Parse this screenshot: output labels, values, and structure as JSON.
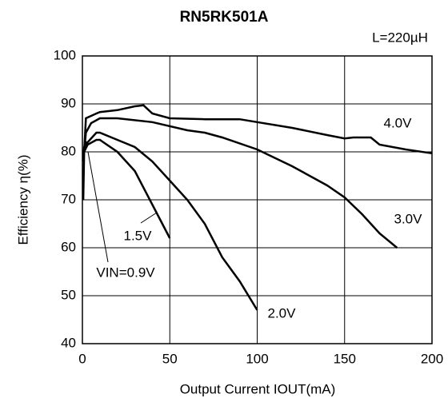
{
  "chart_data": {
    "type": "line",
    "title": "RN5RK501A",
    "annotation": "L=220µH",
    "xlabel": "Output Current IOUT(mA)",
    "ylabel": "Efficiency η(%)",
    "xlim": [
      0,
      200
    ],
    "xticks": [
      0,
      50,
      100,
      150,
      200
    ],
    "ylim": [
      40,
      100
    ],
    "yticks": [
      40,
      50,
      60,
      70,
      80,
      90,
      100
    ],
    "grid": true,
    "series": [
      {
        "name": "4.0V",
        "color": "#000000",
        "x": [
          0.5,
          1,
          2,
          5,
          8,
          10,
          20,
          30,
          35,
          40,
          50,
          70,
          90,
          100,
          120,
          140,
          150,
          155,
          165,
          170,
          185,
          200
        ],
        "values": [
          70,
          80,
          87,
          87.5,
          88,
          88.3,
          88.7,
          89.5,
          89.7,
          88,
          87,
          86.8,
          86.8,
          86.2,
          85,
          83.5,
          82.8,
          83,
          83,
          81.5,
          80.5,
          79.7
        ]
      },
      {
        "name": "3.0V",
        "color": "#000000",
        "x": [
          1,
          2,
          5,
          10,
          20,
          40,
          60,
          70,
          80,
          100,
          120,
          140,
          150,
          160,
          170,
          180
        ],
        "values": [
          80,
          84,
          86,
          87,
          87,
          86.2,
          84.5,
          84,
          83,
          80.5,
          77,
          73,
          70.5,
          67,
          63,
          60
        ]
      },
      {
        "name": "2.0V",
        "color": "#000000",
        "x": [
          1,
          3,
          8,
          10,
          20,
          30,
          40,
          50,
          60,
          70,
          80,
          90,
          100
        ],
        "values": [
          80,
          82,
          84,
          84,
          82.5,
          81,
          78,
          74,
          70,
          65,
          58,
          53,
          47
        ]
      },
      {
        "name": "1.5V",
        "color": "#000000",
        "x": [
          1,
          3,
          8,
          10,
          20,
          30,
          40,
          50
        ],
        "values": [
          80,
          81.5,
          82.5,
          82.5,
          80,
          76,
          69,
          62
        ]
      },
      {
        "name": "VIN=0.9V",
        "color": "#000000",
        "x": [
          0.3,
          1,
          2,
          3
        ],
        "values": [
          78,
          81,
          82,
          81.5
        ]
      }
    ]
  }
}
